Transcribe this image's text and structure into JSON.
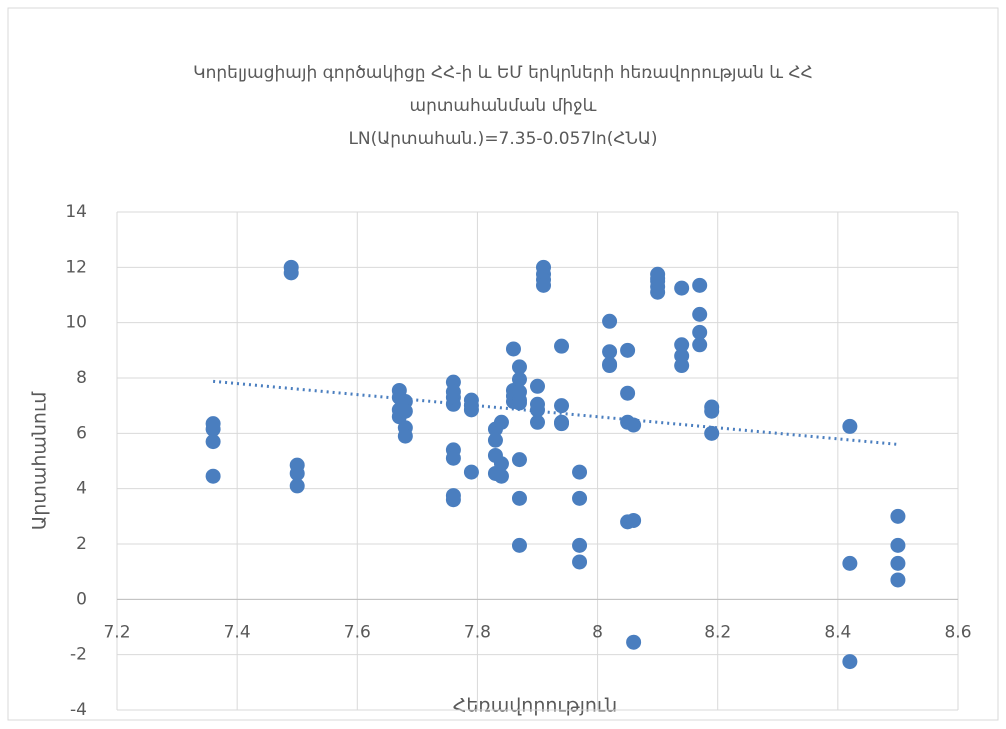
{
  "chart_data": {
    "type": "scatter",
    "title": [
      "Կորելյացիայի գործակիցը ՀՀ-ի և ԵՄ երկրների հեռավորության և ՀՀ",
      "արտահանման միջև",
      "LN(Արտահան.)=7.35-0.057ln(ՀՆԱ)"
    ],
    "x_label": "Հեռավորություն",
    "y_label": "Արտահանում",
    "color": "#4a7ebf",
    "x": [
      7.36,
      7.36,
      7.36,
      7.36,
      7.49,
      7.49,
      7.5,
      7.5,
      7.5,
      7.67,
      7.67,
      7.67,
      7.67,
      7.68,
      7.68,
      7.68,
      7.68,
      7.76,
      7.76,
      7.76,
      7.76,
      7.76,
      7.76,
      7.76,
      7.76,
      7.79,
      7.79,
      7.79,
      7.79,
      7.83,
      7.83,
      7.83,
      7.83,
      7.84,
      7.84,
      7.84,
      7.86,
      7.86,
      7.86,
      7.86,
      7.87,
      7.87,
      7.87,
      7.87,
      7.87,
      7.87,
      7.87,
      7.87,
      7.9,
      7.9,
      7.9,
      7.9,
      7.91,
      7.91,
      7.91,
      7.91,
      7.94,
      7.94,
      7.94,
      7.94,
      7.97,
      7.97,
      7.97,
      7.97,
      8.02,
      8.02,
      8.02,
      8.02,
      8.05,
      8.05,
      8.05,
      8.05,
      8.06,
      8.06,
      8.06,
      8.1,
      8.1,
      8.1,
      8.1,
      8.1,
      8.14,
      8.14,
      8.14,
      8.14,
      8.17,
      8.17,
      8.17,
      8.17,
      8.19,
      8.19,
      8.19,
      8.42,
      8.42,
      8.42,
      8.5,
      8.5,
      8.5,
      8.5
    ],
    "values": [
      6.35,
      6.15,
      5.7,
      4.45,
      12.0,
      11.8,
      4.85,
      4.55,
      4.1,
      7.55,
      7.3,
      6.85,
      6.6,
      7.15,
      6.8,
      6.2,
      5.9,
      7.85,
      7.5,
      7.3,
      7.05,
      5.4,
      5.1,
      3.75,
      3.6,
      7.2,
      6.85,
      4.6,
      7.0,
      6.15,
      5.75,
      5.2,
      4.55,
      6.4,
      4.9,
      4.45,
      9.05,
      7.55,
      7.35,
      7.15,
      8.4,
      7.95,
      7.5,
      7.2,
      7.1,
      5.05,
      3.65,
      1.95,
      7.7,
      7.05,
      6.85,
      6.4,
      12.0,
      11.75,
      11.55,
      11.35,
      9.15,
      7.0,
      6.4,
      6.35,
      4.6,
      3.65,
      1.95,
      1.35,
      10.05,
      8.95,
      8.5,
      8.45,
      9.0,
      7.45,
      6.4,
      2.8,
      6.3,
      2.85,
      -1.55,
      11.75,
      11.6,
      11.5,
      11.3,
      11.1,
      11.25,
      9.2,
      8.8,
      8.45,
      11.35,
      10.3,
      9.65,
      9.2,
      6.95,
      6.8,
      6.0,
      6.25,
      1.3,
      -2.25,
      3.0,
      1.95,
      1.3,
      0.7
    ],
    "trendline": {
      "x": [
        7.36,
        8.5
      ],
      "values": [
        7.88,
        5.6
      ]
    },
    "xlim": [
      7.2,
      8.6
    ],
    "xticks": [
      7.2,
      7.4,
      7.6,
      7.8,
      8,
      8.2,
      8.4,
      8.6
    ],
    "ylim": [
      -4,
      14
    ],
    "yticks": [
      -4,
      -2,
      0,
      2,
      4,
      6,
      8,
      10,
      12,
      14
    ],
    "grid": true
  }
}
